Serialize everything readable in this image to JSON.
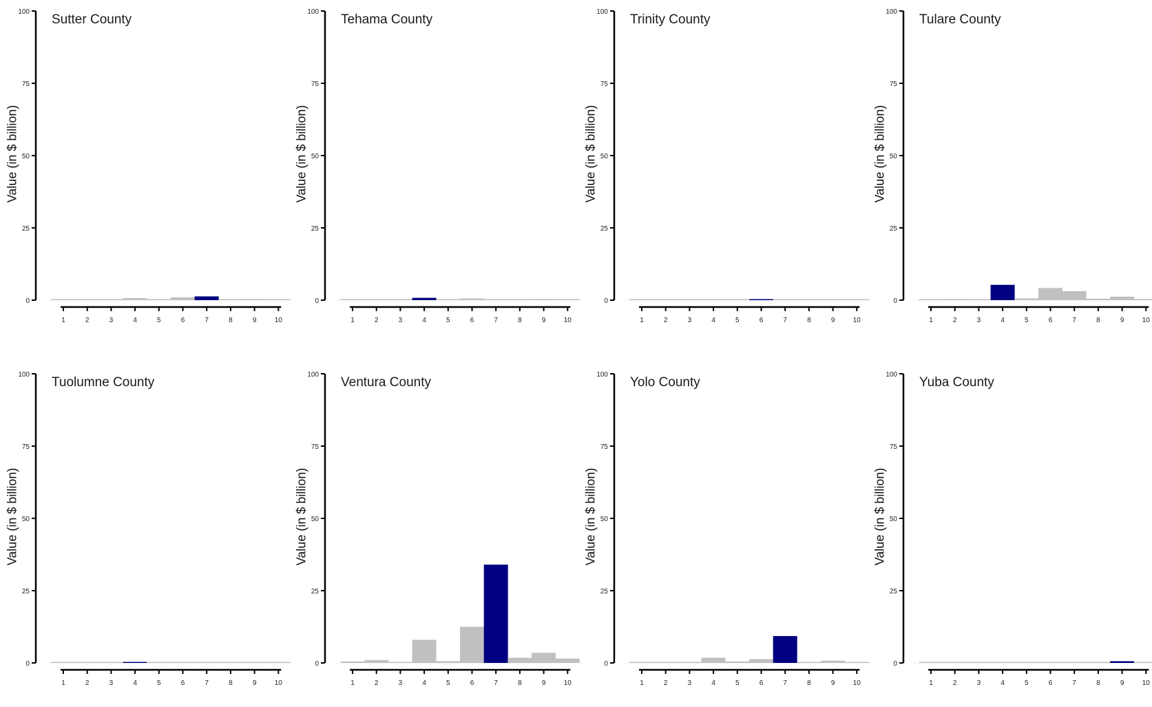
{
  "colors": {
    "highlight": "#000080",
    "other": "#c0c0c0"
  },
  "chart_data": [
    {
      "type": "bar",
      "title": "Sutter County",
      "ylabel": "Value (in $ billion)",
      "xlabel": "",
      "categories": [
        "1",
        "2",
        "3",
        "4",
        "5",
        "6",
        "7",
        "8",
        "9",
        "10"
      ],
      "values": [
        0.05,
        0.05,
        0.05,
        0.7,
        0.1,
        1.0,
        1.3,
        0.1,
        0.4,
        0.1
      ],
      "highlight_index": 6,
      "ylim": [
        0,
        100
      ],
      "yticks": [
        "0",
        "25",
        "50",
        "75",
        "100"
      ]
    },
    {
      "type": "bar",
      "title": "Tehama County",
      "ylabel": "Value (in $ billion)",
      "xlabel": "",
      "categories": [
        "1",
        "2",
        "3",
        "4",
        "5",
        "6",
        "7",
        "8",
        "9",
        "10"
      ],
      "values": [
        0.05,
        0.05,
        0.2,
        0.8,
        0.1,
        0.6,
        0.1,
        0.2,
        0.4,
        0.1
      ],
      "highlight_index": 3,
      "ylim": [
        0,
        100
      ],
      "yticks": [
        "0",
        "25",
        "50",
        "75",
        "100"
      ]
    },
    {
      "type": "bar",
      "title": "Trinity County",
      "ylabel": "Value (in $ billion)",
      "xlabel": "",
      "categories": [
        "1",
        "2",
        "3",
        "4",
        "5",
        "6",
        "7",
        "8",
        "9",
        "10"
      ],
      "values": [
        0.02,
        0.02,
        0.02,
        0.05,
        0.02,
        0.15,
        0.02,
        0.02,
        0.05,
        0.02
      ],
      "highlight_index": 5,
      "ylim": [
        0,
        100
      ],
      "yticks": [
        "0",
        "25",
        "50",
        "75",
        "100"
      ]
    },
    {
      "type": "bar",
      "title": "Tulare County",
      "ylabel": "Value (in $ billion)",
      "xlabel": "",
      "categories": [
        "1",
        "2",
        "3",
        "4",
        "5",
        "6",
        "7",
        "8",
        "9",
        "10"
      ],
      "values": [
        0.1,
        0.4,
        0.1,
        5.3,
        0.6,
        4.2,
        3.1,
        0.5,
        1.2,
        0.4
      ],
      "highlight_index": 3,
      "ylim": [
        0,
        100
      ],
      "yticks": [
        "0",
        "25",
        "50",
        "75",
        "100"
      ]
    },
    {
      "type": "bar",
      "title": "Tuolumne County",
      "ylabel": "Value (in $ billion)",
      "xlabel": "",
      "categories": [
        "1",
        "2",
        "3",
        "4",
        "5",
        "6",
        "7",
        "8",
        "9",
        "10"
      ],
      "values": [
        0.02,
        0.02,
        0.02,
        0.3,
        0.02,
        0.05,
        0.1,
        0.05,
        0.3,
        0.02
      ],
      "highlight_index": 3,
      "ylim": [
        0,
        100
      ],
      "yticks": [
        "0",
        "25",
        "50",
        "75",
        "100"
      ]
    },
    {
      "type": "bar",
      "title": "Ventura County",
      "ylabel": "Value (in $ billion)",
      "xlabel": "",
      "categories": [
        "1",
        "2",
        "3",
        "4",
        "5",
        "6",
        "7",
        "8",
        "9",
        "10"
      ],
      "values": [
        0.5,
        1.0,
        0.3,
        8.0,
        0.6,
        12.5,
        34.0,
        1.8,
        3.5,
        1.5
      ],
      "highlight_index": 6,
      "ylim": [
        0,
        100
      ],
      "yticks": [
        "0",
        "25",
        "50",
        "75",
        "100"
      ]
    },
    {
      "type": "bar",
      "title": "Yolo County",
      "ylabel": "Value (in $ billion)",
      "xlabel": "",
      "categories": [
        "1",
        "2",
        "3",
        "4",
        "5",
        "6",
        "7",
        "8",
        "9",
        "10"
      ],
      "values": [
        0.2,
        0.05,
        0.1,
        1.8,
        0.5,
        1.3,
        9.3,
        0.1,
        0.8,
        0.2
      ],
      "highlight_index": 6,
      "ylim": [
        0,
        100
      ],
      "yticks": [
        "0",
        "25",
        "50",
        "75",
        "100"
      ]
    },
    {
      "type": "bar",
      "title": "Yuba County",
      "ylabel": "Value (in $ billion)",
      "xlabel": "",
      "categories": [
        "1",
        "2",
        "3",
        "4",
        "5",
        "6",
        "7",
        "8",
        "9",
        "10"
      ],
      "values": [
        0.05,
        0.05,
        0.05,
        0.2,
        0.2,
        0.3,
        0.3,
        0.1,
        0.6,
        0.1
      ],
      "highlight_index": 8,
      "ylim": [
        0,
        100
      ],
      "yticks": [
        "0",
        "25",
        "50",
        "75",
        "100"
      ]
    }
  ]
}
